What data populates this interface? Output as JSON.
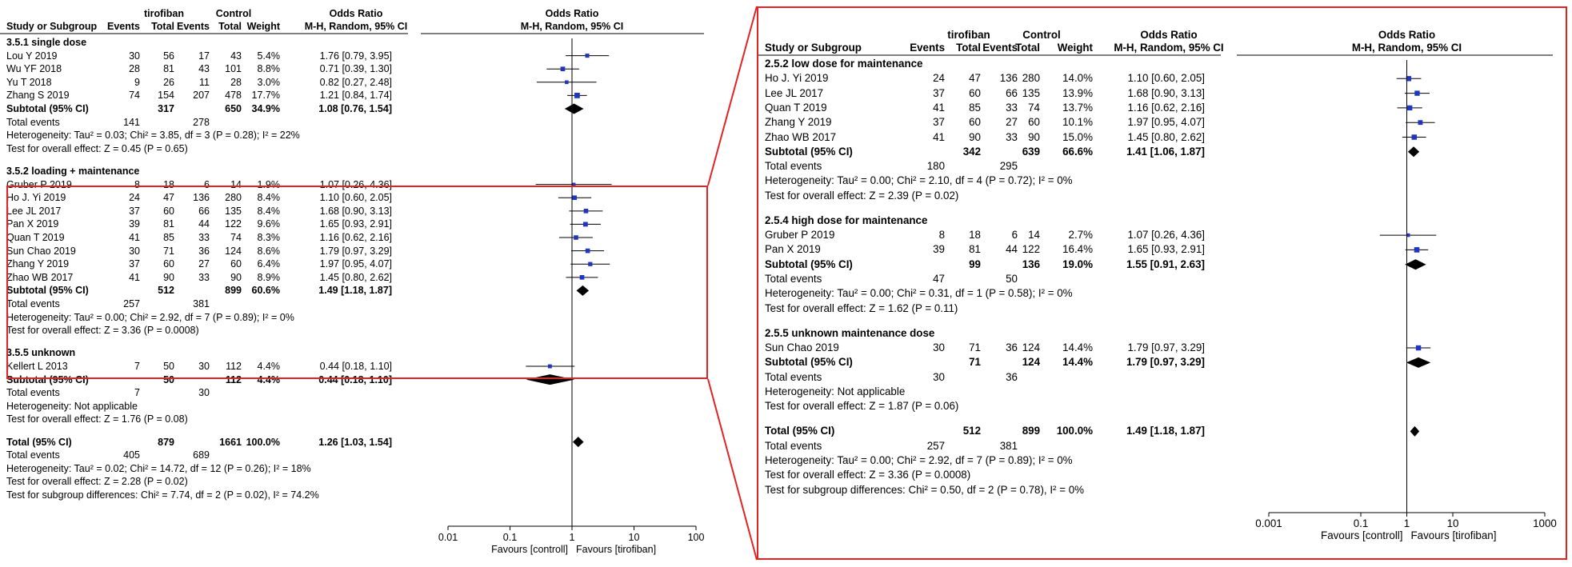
{
  "chart_data": [
    {
      "type": "forest",
      "panel": "left",
      "headers": {
        "study": "Study or Subgroup",
        "exp_group": "tirofiban",
        "ctrl_group": "Control",
        "events": "Events",
        "total": "Total",
        "weight": "Weight",
        "or_group": "Odds Ratio",
        "or_method": "M-H, Random, 95% CI",
        "plot_group": "Odds Ratio",
        "plot_method": "M-H, Random, 95% CI"
      },
      "rows": [
        {
          "kind": "heading",
          "text": "3.5.1 single dose"
        },
        {
          "kind": "study",
          "name": "Lou Y 2019",
          "e1": "30",
          "n1": "56",
          "e2": "17",
          "n2": "43",
          "weight": "5.4%",
          "ci_text": "1.76 [0.79, 3.95]",
          "or": 1.76,
          "lo": 0.79,
          "hi": 3.95
        },
        {
          "kind": "study",
          "name": "Wu YF 2018",
          "e1": "28",
          "n1": "81",
          "e2": "43",
          "n2": "101",
          "weight": "8.8%",
          "ci_text": "0.71 [0.39, 1.30]",
          "or": 0.71,
          "lo": 0.39,
          "hi": 1.3
        },
        {
          "kind": "study",
          "name": "Yu T 2018",
          "e1": "9",
          "n1": "26",
          "e2": "11",
          "n2": "28",
          "weight": "3.0%",
          "ci_text": "0.82 [0.27, 2.48]",
          "or": 0.82,
          "lo": 0.27,
          "hi": 2.48
        },
        {
          "kind": "study",
          "name": "Zhang S 2019",
          "e1": "74",
          "n1": "154",
          "e2": "207",
          "n2": "478",
          "weight": "17.7%",
          "ci_text": "1.21 [0.84, 1.74]",
          "or": 1.21,
          "lo": 0.84,
          "hi": 1.74
        },
        {
          "kind": "subtotal",
          "name": "Subtotal (95% CI)",
          "n1": "317",
          "n2": "650",
          "weight": "34.9%",
          "ci_text": "1.08 [0.76, 1.54]",
          "or": 1.08,
          "lo": 0.76,
          "hi": 1.54
        },
        {
          "kind": "events",
          "name": "Total events",
          "e1": "141",
          "e2": "278"
        },
        {
          "kind": "note",
          "text": "Heterogeneity: Tau² = 0.03; Chi² = 3.85, df = 3 (P = 0.28); I² = 22%"
        },
        {
          "kind": "note",
          "text": "Test for overall effect: Z = 0.45 (P = 0.65)"
        },
        {
          "kind": "gap"
        },
        {
          "kind": "heading",
          "text": "3.5.2 loading + maintenance"
        },
        {
          "kind": "study",
          "name": "Gruber P 2019",
          "e1": "8",
          "n1": "18",
          "e2": "6",
          "n2": "14",
          "weight": "1.9%",
          "ci_text": "1.07 [0.26, 4.36]",
          "or": 1.07,
          "lo": 0.26,
          "hi": 4.36
        },
        {
          "kind": "study",
          "name": "Ho J. Yi 2019",
          "e1": "24",
          "n1": "47",
          "e2": "136",
          "n2": "280",
          "weight": "8.4%",
          "ci_text": "1.10 [0.60, 2.05]",
          "or": 1.1,
          "lo": 0.6,
          "hi": 2.05
        },
        {
          "kind": "study",
          "name": "Lee JL 2017",
          "e1": "37",
          "n1": "60",
          "e2": "66",
          "n2": "135",
          "weight": "8.4%",
          "ci_text": "1.68 [0.90, 3.13]",
          "or": 1.68,
          "lo": 0.9,
          "hi": 3.13
        },
        {
          "kind": "study",
          "name": "Pan X 2019",
          "e1": "39",
          "n1": "81",
          "e2": "44",
          "n2": "122",
          "weight": "9.6%",
          "ci_text": "1.65 [0.93, 2.91]",
          "or": 1.65,
          "lo": 0.93,
          "hi": 2.91
        },
        {
          "kind": "study",
          "name": "Quan T 2019",
          "e1": "41",
          "n1": "85",
          "e2": "33",
          "n2": "74",
          "weight": "8.3%",
          "ci_text": "1.16 [0.62, 2.16]",
          "or": 1.16,
          "lo": 0.62,
          "hi": 2.16
        },
        {
          "kind": "study",
          "name": "Sun Chao 2019",
          "e1": "30",
          "n1": "71",
          "e2": "36",
          "n2": "124",
          "weight": "8.6%",
          "ci_text": "1.79 [0.97, 3.29]",
          "or": 1.79,
          "lo": 0.97,
          "hi": 3.29
        },
        {
          "kind": "study",
          "name": "Zhang Y 2019",
          "e1": "37",
          "n1": "60",
          "e2": "27",
          "n2": "60",
          "weight": "6.4%",
          "ci_text": "1.97 [0.95, 4.07]",
          "or": 1.97,
          "lo": 0.95,
          "hi": 4.07
        },
        {
          "kind": "study",
          "name": "Zhao WB 2017",
          "e1": "41",
          "n1": "90",
          "e2": "33",
          "n2": "90",
          "weight": "8.9%",
          "ci_text": "1.45 [0.80, 2.62]",
          "or": 1.45,
          "lo": 0.8,
          "hi": 2.62
        },
        {
          "kind": "subtotal",
          "name": "Subtotal (95% CI)",
          "n1": "512",
          "n2": "899",
          "weight": "60.6%",
          "ci_text": "1.49 [1.18, 1.87]",
          "or": 1.49,
          "lo": 1.18,
          "hi": 1.87
        },
        {
          "kind": "events",
          "name": "Total events",
          "e1": "257",
          "e2": "381"
        },
        {
          "kind": "note",
          "text": "Heterogeneity: Tau² = 0.00; Chi² = 2.92, df = 7 (P = 0.89); I² = 0%"
        },
        {
          "kind": "note",
          "text": "Test for overall effect: Z = 3.36 (P = 0.0008)"
        },
        {
          "kind": "gap"
        },
        {
          "kind": "heading",
          "text": "3.5.5 unknown"
        },
        {
          "kind": "study",
          "name": "Kellert L 2013",
          "e1": "7",
          "n1": "50",
          "e2": "30",
          "n2": "112",
          "weight": "4.4%",
          "ci_text": "0.44 [0.18, 1.10]",
          "or": 0.44,
          "lo": 0.18,
          "hi": 1.1
        },
        {
          "kind": "subtotal",
          "name": "Subtotal (95% CI)",
          "n1": "50",
          "n2": "112",
          "weight": "4.4%",
          "ci_text": "0.44 [0.18, 1.10]",
          "or": 0.44,
          "lo": 0.18,
          "hi": 1.1
        },
        {
          "kind": "events",
          "name": "Total events",
          "e1": "7",
          "e2": "30"
        },
        {
          "kind": "note",
          "text": "Heterogeneity: Not applicable"
        },
        {
          "kind": "note",
          "text": "Test for overall effect: Z = 1.76 (P = 0.08)"
        },
        {
          "kind": "gap"
        },
        {
          "kind": "total",
          "name": "Total (95% CI)",
          "n1": "879",
          "n2": "1661",
          "weight": "100.0%",
          "ci_text": "1.26 [1.03, 1.54]",
          "or": 1.26,
          "lo": 1.03,
          "hi": 1.54
        },
        {
          "kind": "events",
          "name": "Total events",
          "e1": "405",
          "e2": "689"
        },
        {
          "kind": "note",
          "text": "Heterogeneity: Tau² = 0.02; Chi² = 14.72, df = 12 (P = 0.26); I² = 18%"
        },
        {
          "kind": "note",
          "text": "Test for overall effect: Z = 2.28 (P = 0.02)"
        },
        {
          "kind": "note",
          "text": "Test for subgroup differences: Chi² = 7.74, df = 2 (P = 0.02), I² = 74.2%"
        }
      ],
      "axis": {
        "scale": "log",
        "xlim": [
          0.01,
          100
        ],
        "ticks": [
          {
            "v": 0.01,
            "label": "0.01"
          },
          {
            "v": 0.1,
            "label": "0.1"
          },
          {
            "v": 1,
            "label": "1"
          },
          {
            "v": 10,
            "label": "10"
          },
          {
            "v": 100,
            "label": "100"
          }
        ],
        "favours_left": "Favours [controll]",
        "favours_right": "Favours [tirofiban]"
      },
      "highlight_box": "3.5.2 loading + maintenance"
    },
    {
      "type": "forest",
      "panel": "right",
      "headers": {
        "study": "Study or Subgroup",
        "exp_group": "tirofiban",
        "ctrl_group": "Control",
        "events": "Events",
        "total": "Total",
        "weight": "Weight",
        "or_group": "Odds Ratio",
        "or_method": "M-H, Random, 95% CI",
        "plot_group": "Odds Ratio",
        "plot_method": "M-H, Random, 95% CI"
      },
      "rows": [
        {
          "kind": "heading",
          "text": "2.5.2 low dose for maintenance"
        },
        {
          "kind": "study",
          "name": "Ho J. Yi 2019",
          "e1": "24",
          "n1": "47",
          "e2": "136",
          "n2": "280",
          "weight": "14.0%",
          "ci_text": "1.10 [0.60, 2.05]",
          "or": 1.1,
          "lo": 0.6,
          "hi": 2.05
        },
        {
          "kind": "study",
          "name": "Lee JL 2017",
          "e1": "37",
          "n1": "60",
          "e2": "66",
          "n2": "135",
          "weight": "13.9%",
          "ci_text": "1.68 [0.90, 3.13]",
          "or": 1.68,
          "lo": 0.9,
          "hi": 3.13
        },
        {
          "kind": "study",
          "name": "Quan T 2019",
          "e1": "41",
          "n1": "85",
          "e2": "33",
          "n2": "74",
          "weight": "13.7%",
          "ci_text": "1.16 [0.62, 2.16]",
          "or": 1.16,
          "lo": 0.62,
          "hi": 2.16
        },
        {
          "kind": "study",
          "name": "Zhang Y 2019",
          "e1": "37",
          "n1": "60",
          "e2": "27",
          "n2": "60",
          "weight": "10.1%",
          "ci_text": "1.97 [0.95, 4.07]",
          "or": 1.97,
          "lo": 0.95,
          "hi": 4.07
        },
        {
          "kind": "study",
          "name": "Zhao WB 2017",
          "e1": "41",
          "n1": "90",
          "e2": "33",
          "n2": "90",
          "weight": "15.0%",
          "ci_text": "1.45 [0.80, 2.62]",
          "or": 1.45,
          "lo": 0.8,
          "hi": 2.62
        },
        {
          "kind": "subtotal",
          "name": "Subtotal (95% CI)",
          "n1": "342",
          "n2": "639",
          "weight": "66.6%",
          "ci_text": "1.41 [1.06, 1.87]",
          "or": 1.41,
          "lo": 1.06,
          "hi": 1.87
        },
        {
          "kind": "events",
          "name": "Total events",
          "e1": "180",
          "e2": "295"
        },
        {
          "kind": "note",
          "text": "Heterogeneity: Tau² = 0.00; Chi² = 2.10, df = 4 (P = 0.72); I² = 0%"
        },
        {
          "kind": "note",
          "text": "Test for overall effect: Z = 2.39 (P = 0.02)"
        },
        {
          "kind": "gap"
        },
        {
          "kind": "heading",
          "text": "2.5.4 high dose for maintenance"
        },
        {
          "kind": "study",
          "name": "Gruber P 2019",
          "e1": "8",
          "n1": "18",
          "e2": "6",
          "n2": "14",
          "weight": "2.7%",
          "ci_text": "1.07 [0.26, 4.36]",
          "or": 1.07,
          "lo": 0.26,
          "hi": 4.36
        },
        {
          "kind": "study",
          "name": "Pan X 2019",
          "e1": "39",
          "n1": "81",
          "e2": "44",
          "n2": "122",
          "weight": "16.4%",
          "ci_text": "1.65 [0.93, 2.91]",
          "or": 1.65,
          "lo": 0.93,
          "hi": 2.91
        },
        {
          "kind": "subtotal",
          "name": "Subtotal (95% CI)",
          "n1": "99",
          "n2": "136",
          "weight": "19.0%",
          "ci_text": "1.55 [0.91, 2.63]",
          "or": 1.55,
          "lo": 0.91,
          "hi": 2.63
        },
        {
          "kind": "events",
          "name": "Total events",
          "e1": "47",
          "e2": "50"
        },
        {
          "kind": "note",
          "text": "Heterogeneity: Tau² = 0.00; Chi² = 0.31, df = 1 (P = 0.58); I² = 0%"
        },
        {
          "kind": "note",
          "text": "Test for overall effect: Z = 1.62 (P = 0.11)"
        },
        {
          "kind": "gap"
        },
        {
          "kind": "heading",
          "text": "2.5.5 unknown maintenance dose"
        },
        {
          "kind": "study",
          "name": "Sun Chao 2019",
          "e1": "30",
          "n1": "71",
          "e2": "36",
          "n2": "124",
          "weight": "14.4%",
          "ci_text": "1.79 [0.97, 3.29]",
          "or": 1.79,
          "lo": 0.97,
          "hi": 3.29
        },
        {
          "kind": "subtotal",
          "name": "Subtotal (95% CI)",
          "n1": "71",
          "n2": "124",
          "weight": "14.4%",
          "ci_text": "1.79 [0.97, 3.29]",
          "or": 1.79,
          "lo": 0.97,
          "hi": 3.29
        },
        {
          "kind": "events",
          "name": "Total events",
          "e1": "30",
          "e2": "36"
        },
        {
          "kind": "note",
          "text": "Heterogeneity: Not applicable"
        },
        {
          "kind": "note",
          "text": "Test for overall effect: Z = 1.87 (P = 0.06)"
        },
        {
          "kind": "gap"
        },
        {
          "kind": "total",
          "name": "Total (95% CI)",
          "n1": "512",
          "n2": "899",
          "weight": "100.0%",
          "ci_text": "1.49 [1.18, 1.87]",
          "or": 1.49,
          "lo": 1.18,
          "hi": 1.87
        },
        {
          "kind": "events",
          "name": "Total events",
          "e1": "257",
          "e2": "381"
        },
        {
          "kind": "note",
          "text": "Heterogeneity: Tau² = 0.00; Chi² = 2.92, df = 7 (P = 0.89); I² = 0%"
        },
        {
          "kind": "note",
          "text": "Test for overall effect: Z = 3.36 (P = 0.0008)"
        },
        {
          "kind": "note",
          "text": "Test for subgroup differences: Chi² = 0.50, df = 2 (P = 0.78), I² = 0%"
        }
      ],
      "axis": {
        "scale": "log",
        "xlim": [
          0.001,
          1000
        ],
        "ticks": [
          {
            "v": 0.001,
            "label": "0.001"
          },
          {
            "v": 0.1,
            "label": "0.1"
          },
          {
            "v": 1,
            "label": "1"
          },
          {
            "v": 10,
            "label": "10"
          },
          {
            "v": 1000,
            "label": "1000"
          }
        ],
        "favours_left": "Favours [controll]",
        "favours_right": "Favours [tirofiban]"
      },
      "highlight_box": "entire panel"
    }
  ],
  "colors": {
    "highlight": "#e02424",
    "square": "#1f35c8",
    "diamond": "#000000",
    "line": "#000000"
  }
}
